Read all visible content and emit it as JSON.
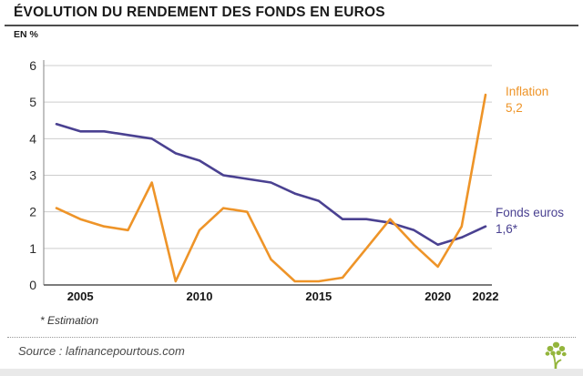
{
  "colors": {
    "inflation_orange": "#EE9428",
    "fonds_purple": "#4A4191",
    "logo_green": "#94B53C",
    "grid_gray": "#CDCDCD",
    "title_dark": "#1A1A1A"
  },
  "header": {
    "title": "ÉVOLUTION DU RENDEMENT DES FONDS EN EUROS"
  },
  "chart_data": {
    "type": "line",
    "title": "ÉVOLUTION DU RENDEMENT DES FONDS EN EUROS",
    "ylabel": "EN %",
    "xlabel": "",
    "x": [
      2004,
      2005,
      2006,
      2007,
      2008,
      2009,
      2010,
      2011,
      2012,
      2013,
      2014,
      2015,
      2016,
      2017,
      2018,
      2019,
      2020,
      2021,
      2022
    ],
    "xticks": [
      2005,
      2010,
      2015,
      2020,
      2022
    ],
    "yticks": [
      0,
      1,
      2,
      3,
      4,
      5,
      6
    ],
    "ylim": [
      0,
      6
    ],
    "grid": true,
    "legend_position": "right-annotations",
    "series": [
      {
        "name": "Inflation",
        "color": "#EE9428",
        "values": [
          2.1,
          1.8,
          1.6,
          1.5,
          2.8,
          0.1,
          1.5,
          2.1,
          2.0,
          0.7,
          0.1,
          0.1,
          0.2,
          1.0,
          1.8,
          1.1,
          0.5,
          1.6,
          5.2
        ]
      },
      {
        "name": "Fonds euros",
        "color": "#4A4191",
        "values": [
          4.4,
          4.2,
          4.2,
          4.1,
          4.0,
          3.6,
          3.4,
          3.0,
          2.9,
          2.8,
          2.5,
          2.3,
          1.8,
          1.8,
          1.7,
          1.5,
          1.1,
          1.3,
          1.6
        ]
      }
    ],
    "annotations": [
      {
        "label": "Inflation",
        "value": "5,2",
        "color": "#EE9428"
      },
      {
        "label": "Fonds euros",
        "value": "1,6*",
        "color": "#4A4191"
      }
    ]
  },
  "footnote": "* Estimation",
  "source": "Source : lafinancepourtous.com",
  "logo": {
    "icon": "tree-icon"
  }
}
